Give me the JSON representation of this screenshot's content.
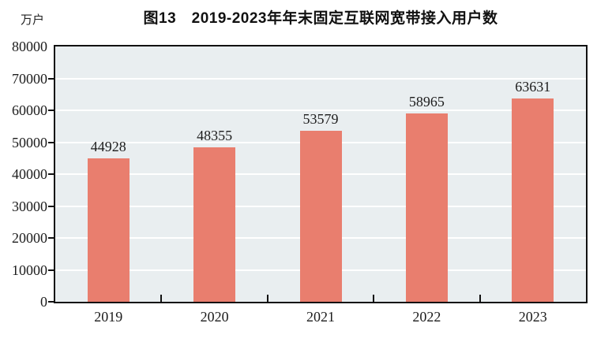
{
  "chart": {
    "title": "图13　2019-2023年年末固定互联网宽带接入用户数",
    "unit_label": "万户"
  },
  "chart_data": {
    "type": "bar",
    "title": "图13 2019-2023年年末固定互联网宽带接入用户数",
    "unit": "万户",
    "categories": [
      "2019",
      "2020",
      "2021",
      "2022",
      "2023"
    ],
    "values": [
      44928,
      48355,
      53579,
      58965,
      63631
    ],
    "data_labels": [
      "44928",
      "48355",
      "53579",
      "58965",
      "63631"
    ],
    "xlabel": "",
    "ylabel": "万户",
    "ylim": [
      0,
      80000
    ],
    "yticks": [
      0,
      10000,
      20000,
      30000,
      40000,
      50000,
      60000,
      70000,
      80000
    ],
    "grid": true,
    "legend": false,
    "colors": {
      "bar": "#e97e6e",
      "plot_background": "#e9eef0",
      "gridline": "#ffffff",
      "axis": "#111111",
      "text": "#1c1c1c"
    }
  }
}
